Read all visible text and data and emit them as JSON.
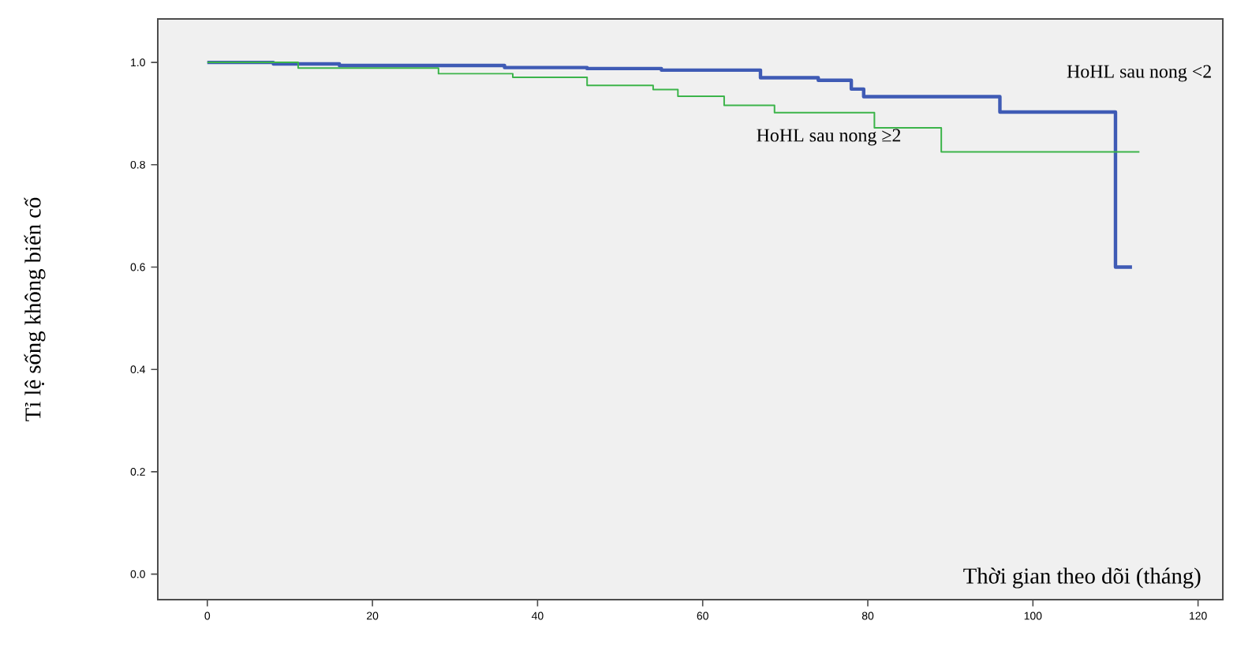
{
  "chart_data": {
    "type": "step",
    "xlabel": "Thời gian theo dõi (tháng)",
    "ylabel": "Tỉ lệ sống không biến cố",
    "xlim": [
      -6,
      123
    ],
    "ylim": [
      -0.05,
      1.085
    ],
    "xticks": [
      0,
      20,
      40,
      60,
      80,
      100,
      120
    ],
    "yticks": [
      {
        "value": 0,
        "label": "0.0"
      },
      {
        "value": 0.2,
        "label": "0.2"
      },
      {
        "value": 0.4,
        "label": "0.4"
      },
      {
        "value": 0.6,
        "label": "0.6"
      },
      {
        "value": 0.8,
        "label": "0.8"
      },
      {
        "value": 1,
        "label": "1.0"
      }
    ],
    "grid": false,
    "legend": false,
    "series": [
      {
        "name": "HoHL sau nong  <2",
        "color": "#3f5bb5",
        "x": [
          0,
          8,
          16,
          36,
          46,
          55,
          67,
          74,
          78,
          79.5,
          96,
          110,
          112
        ],
        "values": [
          1.0,
          0.997,
          0.994,
          0.99,
          0.988,
          0.985,
          0.97,
          0.965,
          0.948,
          0.933,
          0.903,
          0.6,
          0.6
        ]
      },
      {
        "name": "HoHL sau nong  ≥2",
        "color": "#3cb44a",
        "x": [
          0,
          11,
          28,
          37,
          46,
          54,
          57,
          62.6,
          68.7,
          80.8,
          88.9,
          112.9
        ],
        "values": [
          1.0,
          0.989,
          0.978,
          0.971,
          0.955,
          0.947,
          0.934,
          0.916,
          0.902,
          0.872,
          0.825,
          0.825
        ]
      }
    ]
  }
}
